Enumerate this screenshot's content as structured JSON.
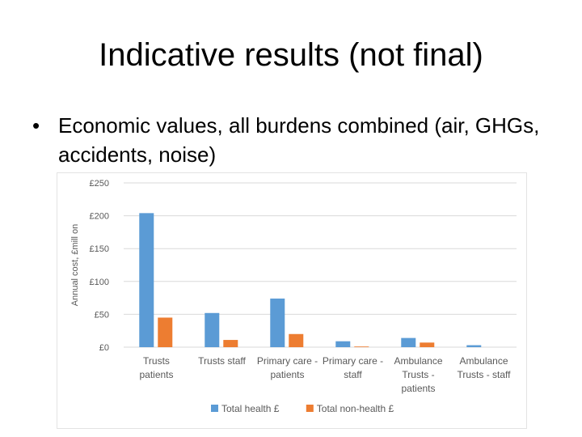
{
  "slide": {
    "title": "Indicative results (not final)",
    "bullet_symbol": "•",
    "bullet_text": "Economic values, all burdens combined (air, GHGs, accidents, noise)"
  },
  "chart_data": {
    "type": "bar",
    "categories": [
      [
        "Trusts",
        "patients"
      ],
      [
        "Trusts staff"
      ],
      [
        "Primary care -",
        "patients"
      ],
      [
        "Primary care -",
        "staff"
      ],
      [
        "Ambulance",
        "Trusts -",
        "patients"
      ],
      [
        "Ambulance",
        "Trusts - staff"
      ]
    ],
    "series": [
      {
        "name": "Total health £",
        "color": "#5b9bd5",
        "values": [
          204,
          52,
          74,
          9,
          14,
          3
        ]
      },
      {
        "name": "Total non-health £",
        "color": "#ed7d31",
        "values": [
          45,
          11,
          20,
          1,
          7,
          0
        ]
      }
    ],
    "ylabel": "Annual cost, £mill on",
    "yticks": [
      "£0",
      "£50",
      "£100",
      "£150",
      "£200",
      "£250"
    ],
    "ylim": [
      0,
      250
    ],
    "grid": true,
    "legend_position": "bottom"
  }
}
